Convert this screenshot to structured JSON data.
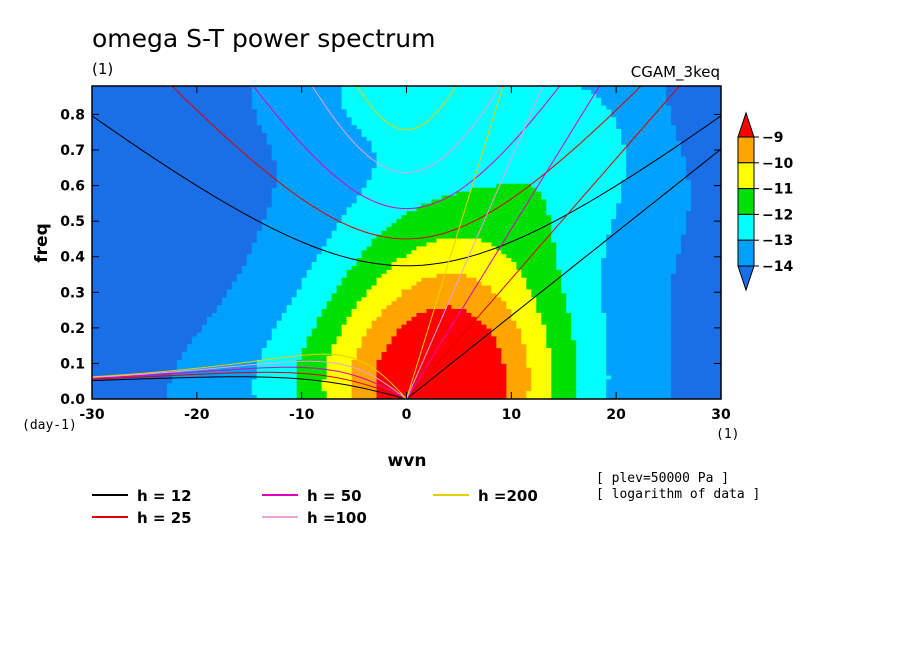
{
  "chart_data": {
    "type": "heatmap",
    "title": "omega S-T power spectrum",
    "subtitle_left": "(1)",
    "subtitle_right": "CGAM_3keq",
    "xlabel": "wvn",
    "ylabel": "freq",
    "x_unit_label": "(1)",
    "y_unit_label": "(day-1)",
    "xlim": [
      -30,
      30
    ],
    "ylim": [
      0,
      0.88
    ],
    "xticks": [
      -30,
      -20,
      -10,
      0,
      10,
      20,
      30
    ],
    "yticks": [
      0.0,
      0.1,
      0.2,
      0.3,
      0.4,
      0.5,
      0.6,
      0.7,
      0.8
    ],
    "colorbar": {
      "levels": [
        -14,
        -13,
        -12,
        -11,
        -10,
        -9
      ],
      "colors": [
        "#1a6fe6",
        "#00a0ff",
        "#00ffff",
        "#00e000",
        "#ffff00",
        "#ffa500",
        "#ff0000"
      ]
    },
    "contour_field": {
      "bins_from_low": [
        "< -14",
        "-14 to -13",
        "-13 to -12",
        "-12 to -11",
        "-11 to -10",
        "-10 to -9",
        "> -9"
      ],
      "peak_wavenumber": 4,
      "peak_freq": 0.06,
      "peak_value": -8.6
    },
    "dispersion_curves": [
      {
        "name": "h = 12",
        "h": 12,
        "color": "#000000"
      },
      {
        "name": "h = 25",
        "h": 25,
        "color": "#e00000"
      },
      {
        "name": "h = 50",
        "h": 50,
        "color": "#e000c0"
      },
      {
        "name": "h =100",
        "h": 100,
        "color": "#e8a0e0"
      },
      {
        "name": "h =200",
        "h": 200,
        "color": "#e8d000"
      }
    ],
    "annotations": [
      "[ plev=50000 Pa ]",
      "[ logarithm of data ]"
    ]
  }
}
